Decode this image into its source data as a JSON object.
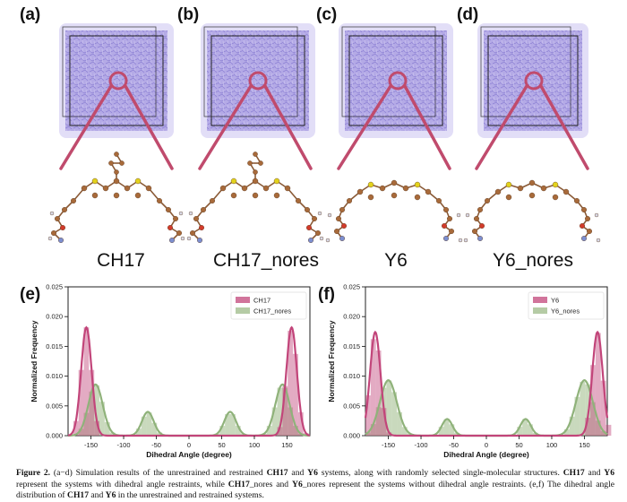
{
  "panels_top": [
    {
      "letter": "(a)",
      "label": "CH17"
    },
    {
      "letter": "(b)",
      "label": "CH17_nores"
    },
    {
      "letter": "(c)",
      "label": "Y6"
    },
    {
      "letter": "(d)",
      "label": "Y6_nores"
    }
  ],
  "colors": {
    "box_fill": "#a99ee0",
    "zoom_line": "#c04b6d",
    "restrained": "#c2457a",
    "unrestrained": "#9cba87",
    "sulfur": "#e3d21c",
    "carbon": "#a86a3a",
    "oxygen": "#d23b2b",
    "nitrogen": "#7d8fd0",
    "hydrogen": "#d9d9e6"
  },
  "chart_data": [
    {
      "panel": "(e)",
      "type": "histogram-kde",
      "xlabel": "Dihedral Angle (degree)",
      "ylabel": "Normalized Frequency",
      "xlim": [
        -185,
        185
      ],
      "ylim": [
        0,
        0.025
      ],
      "xticks": [
        "-150",
        "-100",
        "-50",
        "0",
        "50",
        "100",
        "150"
      ],
      "yticks": [
        "0.000",
        "0.005",
        "0.010",
        "0.015",
        "0.020",
        "0.025"
      ],
      "legend": "top-right",
      "series": [
        {
          "name": "CH17",
          "role": "restrained",
          "peaks": [
            {
              "center": -157,
              "height": 0.0182,
              "sigma": 8
            },
            {
              "center": 157,
              "height": 0.0182,
              "sigma": 8
            }
          ]
        },
        {
          "name": "CH17_nores",
          "role": "unrestrained",
          "peaks": [
            {
              "center": -143,
              "height": 0.0086,
              "sigma": 11
            },
            {
              "center": -63,
              "height": 0.004,
              "sigma": 9
            },
            {
              "center": 63,
              "height": 0.004,
              "sigma": 9
            },
            {
              "center": 143,
              "height": 0.0086,
              "sigma": 11
            }
          ]
        }
      ]
    },
    {
      "panel": "(f)",
      "type": "histogram-kde",
      "xlabel": "Dihedral Angle (degree)",
      "ylabel": "Normalized Frequency",
      "xlim": [
        -185,
        185
      ],
      "ylim": [
        0,
        0.025
      ],
      "xticks": [
        "-150",
        "-100",
        "-50",
        "0",
        "50",
        "100",
        "150"
      ],
      "yticks": [
        "0.000",
        "0.005",
        "0.010",
        "0.015",
        "0.020",
        "0.025"
      ],
      "legend": "top-right",
      "series": [
        {
          "name": "Y6",
          "role": "restrained",
          "peaks": [
            {
              "center": -170,
              "height": 0.0174,
              "sigma": 8
            },
            {
              "center": 170,
              "height": 0.0174,
              "sigma": 8
            }
          ]
        },
        {
          "name": "Y6_nores",
          "role": "unrestrained",
          "peaks": [
            {
              "center": -150,
              "height": 0.0093,
              "sigma": 13
            },
            {
              "center": -60,
              "height": 0.0028,
              "sigma": 8
            },
            {
              "center": 60,
              "height": 0.0028,
              "sigma": 8
            },
            {
              "center": 150,
              "height": 0.0093,
              "sigma": 13
            }
          ]
        }
      ]
    }
  ],
  "caption": {
    "label": "Figure 2.",
    "t1": " (a−d) Simulation results of the unrestrained and restrained ",
    "s1": "CH17",
    "t2": " and ",
    "s2": "Y6",
    "t3": " systems, along with randomly selected single-molecular structures. ",
    "s3": "CH17",
    "t4": " and ",
    "s4": "Y6",
    "t5": " represent the systems with dihedral angle restraints, while ",
    "s5": "CH17",
    "t6": "_nores and ",
    "s6": "Y6",
    "t7": "_nores represent the systems without dihedral angle restraints. (e,f) The dihedral angle distribution of ",
    "s7": "CH17",
    "t8": " and ",
    "s8": "Y6",
    "t9": " in the unrestrained and restrained systems."
  }
}
